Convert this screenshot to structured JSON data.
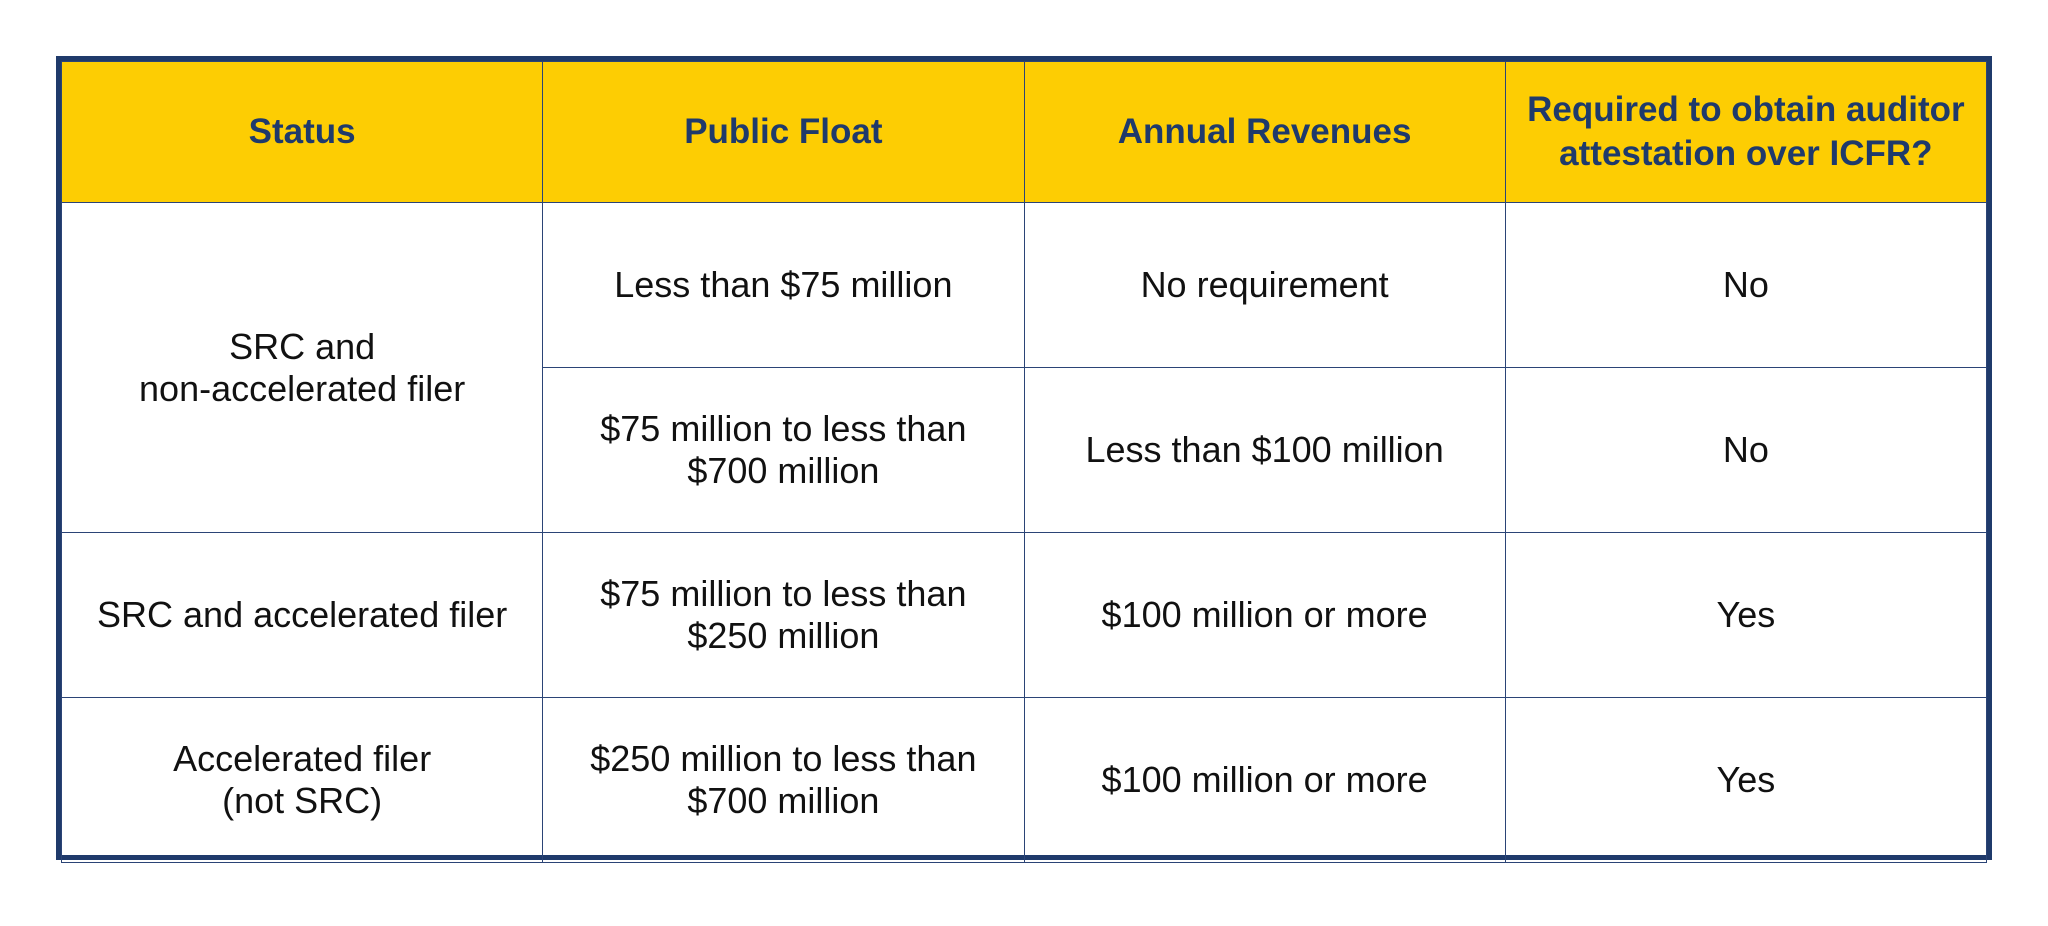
{
  "colors": {
    "header_bg": "#fdcd03",
    "header_text": "#1f3a6b",
    "border": "#1f3a6b",
    "body_text": "#111111"
  },
  "table": {
    "headers": [
      "Status",
      "Public Float",
      "Annual Revenues",
      "Required to obtain auditor attestation over ICFR?"
    ],
    "rows": [
      {
        "status": "SRC and\nnon-accelerated filer",
        "public_float": "Less than $75 million",
        "annual_revenues": "No requirement",
        "required": "No"
      },
      {
        "public_float": "$75 million to less than\n$700 million",
        "annual_revenues": "Less than $100 million",
        "required": "No"
      },
      {
        "status": "SRC and accelerated filer",
        "public_float": "$75 million to less than\n$250 million",
        "annual_revenues": "$100 million or more",
        "required": "Yes"
      },
      {
        "status": "Accelerated filer\n(not SRC)",
        "public_float": "$250 million to less than\n$700 million",
        "annual_revenues": "$100 million or more",
        "required": "Yes"
      }
    ]
  }
}
